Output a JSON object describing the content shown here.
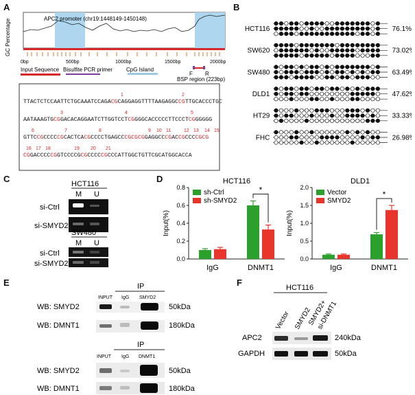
{
  "panels": {
    "A": "A",
    "B": "B",
    "C": "C",
    "D": "D",
    "E": "E",
    "F": "F"
  },
  "panel_a": {
    "ylabel": "GC Percentage",
    "title": "APC2 promoter (chr19:1448149-1450148)",
    "xticks": [
      "0bp",
      "500bp",
      "1000bp",
      "1500bp",
      "2000bp"
    ],
    "bsp_F": "F",
    "bsp_R": "R",
    "bsp_label": "BSP region (223bp)",
    "legend": [
      {
        "label": "Input Sequence",
        "color": "#d62728"
      },
      {
        "label": "Bisulfite PCR primer",
        "color": "#7b3f99"
      },
      {
        "label": "CpG Island",
        "color": "#9ecae1"
      }
    ],
    "sequence_lines": [
      [
        [
          "TTACTCTCCAATTCTGCAAATCCAGA",
          "k"
        ],
        [
          "CG",
          "r"
        ],
        [
          "CAGGAGGTTTTAAGAGGC",
          "k"
        ],
        [
          "CG",
          "r"
        ],
        [
          "TTGCACCCTGC",
          "k"
        ]
      ],
      [
        [
          "AATAAAGTG",
          "k"
        ],
        [
          "CG",
          "r"
        ],
        [
          "GACACAGGAATCTTGGTCCT",
          "k"
        ],
        [
          "CG",
          "r"
        ],
        [
          "GGGCACCCCCTTCCCT",
          "k"
        ],
        [
          "CG",
          "r"
        ],
        [
          "GGGGG",
          "k"
        ]
      ],
      [
        [
          "GTTC",
          "k"
        ],
        [
          "CG",
          "r"
        ],
        [
          "CCCC",
          "k"
        ],
        [
          "CG",
          "r"
        ],
        [
          "CACTCA",
          "k"
        ],
        [
          "CG",
          "r"
        ],
        [
          "CCCCTGAGCC",
          "k"
        ],
        [
          "CGCGCG",
          "r"
        ],
        [
          "GAGGCC",
          "k"
        ],
        [
          "CG",
          "r"
        ],
        [
          "AC",
          "k"
        ],
        [
          "CG",
          "r"
        ],
        [
          "CCC",
          "k"
        ],
        [
          "CGCG",
          "r"
        ]
      ],
      [
        [
          "CG",
          "r"
        ],
        [
          "GACCCC",
          "k"
        ],
        [
          "CG",
          "r"
        ],
        [
          "GTCCCCG",
          "k"
        ],
        [
          "CG",
          "r"
        ],
        [
          "CCCC",
          "k"
        ],
        [
          "CG",
          "r"
        ],
        [
          "CCCATTGGCTGTTCGCATGGCACCA",
          "k"
        ]
      ]
    ],
    "cpg_numbers": [
      "1",
      "2",
      "3",
      "4",
      "5",
      "6",
      "7",
      "8",
      "9",
      "10",
      "11",
      "12",
      "13",
      "14",
      "15",
      "16",
      "17",
      "18",
      "19",
      "20",
      "21"
    ]
  },
  "panel_b": {
    "rows": [
      {
        "cell": "HCT116",
        "pct": "76.1%"
      },
      {
        "cell": "SW620",
        "pct": "73.02%"
      },
      {
        "cell": "SW480",
        "pct": "63.49%"
      },
      {
        "cell": "DLD1",
        "pct": "47.62%"
      },
      {
        "cell": "HT29",
        "pct": "33.33%"
      },
      {
        "cell": "FHC",
        "pct": "26.98%"
      }
    ],
    "methylated_fraction": [
      0.761,
      0.7302,
      0.6349,
      0.4762,
      0.3333,
      0.2698
    ]
  },
  "panel_c": {
    "blocks": [
      {
        "cell": "HCT116",
        "cols": [
          "M",
          "U"
        ],
        "rows": [
          "si-Ctrl",
          "si-SMYD2"
        ]
      },
      {
        "cell": "SW480",
        "cols": [
          "M",
          "U"
        ],
        "rows": [
          "si-Ctrl",
          "si-SMYD2"
        ]
      }
    ]
  },
  "chart_data": [
    {
      "type": "bar",
      "title": "HCT116",
      "ylabel": "Input(%)",
      "categories": [
        "IgG",
        "DNMT1"
      ],
      "ylim": [
        0,
        0.8
      ],
      "yticks": [
        "0.0",
        "0.2",
        "0.4",
        "0.6",
        "0.8"
      ],
      "series": [
        {
          "name": "sh-Ctrl",
          "color": "#2ca02c",
          "values": [
            0.1,
            0.6
          ],
          "errors": [
            0.015,
            0.05
          ]
        },
        {
          "name": "sh-SMYD2",
          "color": "#e8352b",
          "values": [
            0.11,
            0.33
          ],
          "errors": [
            0.02,
            0.05
          ]
        }
      ],
      "annotation": "*",
      "legend": "top-left"
    },
    {
      "type": "bar",
      "title": "DLD1",
      "ylabel": "Input(%)",
      "categories": [
        "IgG",
        "DNMT1"
      ],
      "ylim": [
        0,
        2.0
      ],
      "yticks": [
        "0.0",
        "0.5",
        "1.0",
        "1.5",
        "2.0"
      ],
      "series": [
        {
          "name": "Vector",
          "color": "#2ca02c",
          "values": [
            0.12,
            0.69
          ],
          "errors": [
            0.02,
            0.05
          ]
        },
        {
          "name": "SMYD2",
          "color": "#e8352b",
          "values": [
            0.12,
            1.37
          ],
          "errors": [
            0.02,
            0.13
          ]
        }
      ],
      "annotation": "*",
      "legend": "top-left"
    }
  ],
  "panel_e": {
    "ip1": {
      "ip": "IP",
      "lanes": [
        "INPUT",
        "IgG",
        "SMYD2"
      ],
      "rows": [
        {
          "label": "WB: SMYD2",
          "kda": "50kDa"
        },
        {
          "label": "WB: DMNT1",
          "kda": "180kDa"
        }
      ]
    },
    "ip2": {
      "ip": "IP",
      "lanes": [
        "INPUT",
        "IgG",
        "DNMT1"
      ],
      "rows": [
        {
          "label": "WB: SMYD2",
          "kda": "50kDa"
        },
        {
          "label": "WB: DMNT1",
          "kda": "180kDa"
        }
      ]
    }
  },
  "panel_f": {
    "cell": "HCT116",
    "lanes": [
      "Vector",
      "SMYD2",
      "SMYD2+",
      "si-DNMT1"
    ],
    "rows": [
      {
        "label": "APC2",
        "kda": "240kDa"
      },
      {
        "label": "GAPDH",
        "kda": "50kDa"
      }
    ]
  }
}
